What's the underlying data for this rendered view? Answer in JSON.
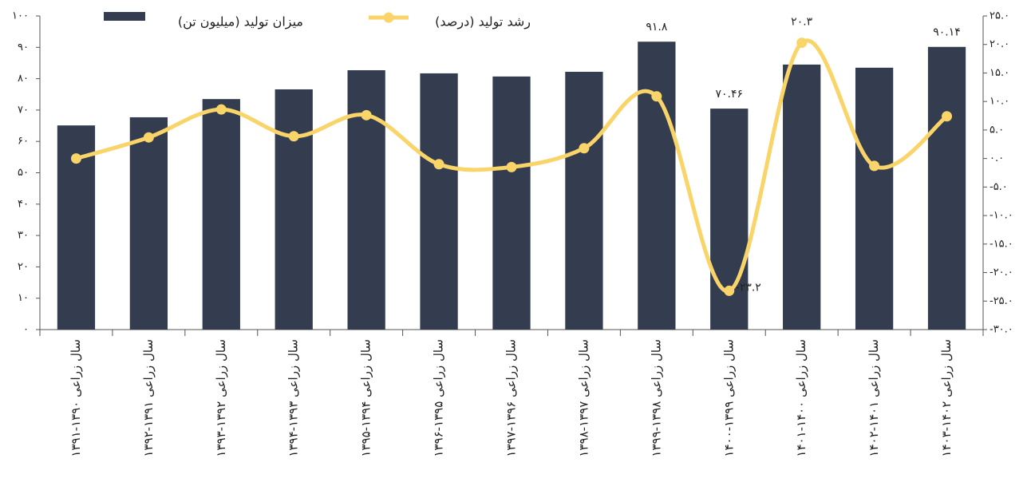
{
  "chart_data": {
    "type": "bar_line",
    "categories": [
      "سال زراعی ۱۳۹۰-۱۳۹۱",
      "سال زراعی ۱۳۹۱-۱۳۹۲",
      "سال زراعی ۱۳۹۲-۱۳۹۳",
      "سال زراعی ۱۳۹۳-۱۳۹۴",
      "سال زراعی ۱۳۹۴-۱۳۹۵",
      "سال زراعی ۱۳۹۵-۱۳۹۶",
      "سال زراعی ۱۳۹۶-۱۳۹۷",
      "سال زراعی ۱۳۹۷-۱۳۹۸",
      "سال زراعی ۱۳۹۸-۱۳۹۹",
      "سال زراعی ۱۳۹۹-۱۴۰۰",
      "سال زراعی ۱۴۰۰-۱۴۰۱",
      "سال زراعی ۱۴۰۱-۱۴۰۲",
      "سال زراعی ۱۴۰۲-۱۴۰۳"
    ],
    "series": [
      {
        "name": "میزان تولید (میلیون تن)",
        "type": "bar",
        "color": "#333d4f",
        "axis": "y",
        "values": [
          65.1,
          67.7,
          73.5,
          76.6,
          82.7,
          81.7,
          80.7,
          82.2,
          91.8,
          70.46,
          84.5,
          83.5,
          90.14
        ],
        "value_labels": [
          null,
          null,
          null,
          null,
          null,
          null,
          null,
          null,
          "۹۱.۸",
          "۷۰.۴۶",
          null,
          null,
          "۹۰.۱۴"
        ]
      },
      {
        "name": "رشد تولید (درصد)",
        "type": "line",
        "color": "#f9d469",
        "axis": "y2",
        "values": [
          0.0,
          3.7,
          8.6,
          3.9,
          7.6,
          -1.0,
          -1.5,
          1.8,
          10.9,
          -23.2,
          20.3,
          -1.3,
          7.4
        ],
        "value_labels": [
          null,
          null,
          null,
          null,
          null,
          null,
          null,
          null,
          null,
          "-۲۳.۲",
          "۲۰.۳",
          null,
          null
        ]
      }
    ],
    "ylim": [
      0,
      100
    ],
    "yticks": [
      {
        "value": 0,
        "label": "۰"
      },
      {
        "value": 10,
        "label": "۱۰"
      },
      {
        "value": 20,
        "label": "۲۰"
      },
      {
        "value": 30,
        "label": "۳۰"
      },
      {
        "value": 40,
        "label": "۴۰"
      },
      {
        "value": 50,
        "label": "۵۰"
      },
      {
        "value": 60,
        "label": "۶۰"
      },
      {
        "value": 70,
        "label": "۷۰"
      },
      {
        "value": 80,
        "label": "۸۰"
      },
      {
        "value": 90,
        "label": "۹۰"
      },
      {
        "value": 100,
        "label": "۱۰۰"
      }
    ],
    "y2lim": [
      -30,
      25
    ],
    "y2ticks": [
      {
        "value": -30,
        "label": "-۳۰.۰"
      },
      {
        "value": -25,
        "label": "-۲۵.۰"
      },
      {
        "value": -20,
        "label": "-۲۰.۰"
      },
      {
        "value": -15,
        "label": "-۱۵.۰"
      },
      {
        "value": -10,
        "label": "-۱۰.۰"
      },
      {
        "value": -5,
        "label": "-۵.۰"
      },
      {
        "value": 0,
        "label": "۰.۰"
      },
      {
        "value": 5,
        "label": "۵.۰"
      },
      {
        "value": 10,
        "label": "۱۰.۰"
      },
      {
        "value": 15,
        "label": "۱۵.۰"
      },
      {
        "value": 20,
        "label": "۲۰.۰"
      },
      {
        "value": 25,
        "label": "۲۵.۰"
      }
    ]
  }
}
